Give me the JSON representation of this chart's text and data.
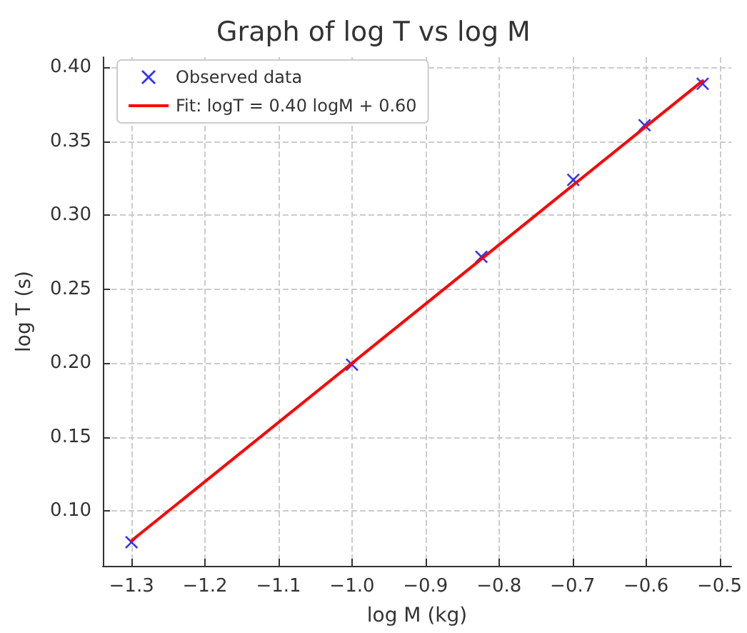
{
  "chart_data": {
    "type": "scatter",
    "title": "Graph of log T vs log M",
    "xlabel": "log M (kg)",
    "ylabel": "log T (s)",
    "series": [
      {
        "name": "Observed data",
        "color": "#0000ff",
        "marker": "cross",
        "x": [
          -1.3,
          -1.0,
          -0.824,
          -0.699,
          -0.602,
          -0.523
        ],
        "values": [
          0.079,
          0.199,
          0.272,
          0.324,
          0.361,
          0.389
        ]
      },
      {
        "name": "Fit: logT = 0.40 logM + 0.60",
        "type": "line",
        "color": "#ff0000",
        "marker": "none",
        "line_style": "solid",
        "x": [
          -1.3,
          -0.523
        ],
        "values": [
          0.08,
          0.391
        ]
      }
    ],
    "xlim": [
      -1.339,
      -0.484
    ],
    "ylim": [
      0.063,
      0.407
    ],
    "xticks": [
      {
        "value": -1.3,
        "label": "−1.3"
      },
      {
        "value": -1.2,
        "label": "−1.2"
      },
      {
        "value": -1.1,
        "label": "−1.1"
      },
      {
        "value": -1.0,
        "label": "−1.0"
      },
      {
        "value": -0.9,
        "label": "−0.9"
      },
      {
        "value": -0.8,
        "label": "−0.8"
      },
      {
        "value": -0.7,
        "label": "−0.7"
      },
      {
        "value": -0.6,
        "label": "−0.6"
      },
      {
        "value": -0.5,
        "label": "−0.5"
      }
    ],
    "yticks": [
      {
        "value": 0.1,
        "label": "0.10"
      },
      {
        "value": 0.15,
        "label": "0.15"
      },
      {
        "value": 0.2,
        "label": "0.20"
      },
      {
        "value": 0.25,
        "label": "0.25"
      },
      {
        "value": 0.3,
        "label": "0.30"
      },
      {
        "value": 0.35,
        "label": "0.35"
      },
      {
        "value": 0.4,
        "label": "0.40"
      }
    ],
    "grid": true,
    "legend": "top left"
  }
}
